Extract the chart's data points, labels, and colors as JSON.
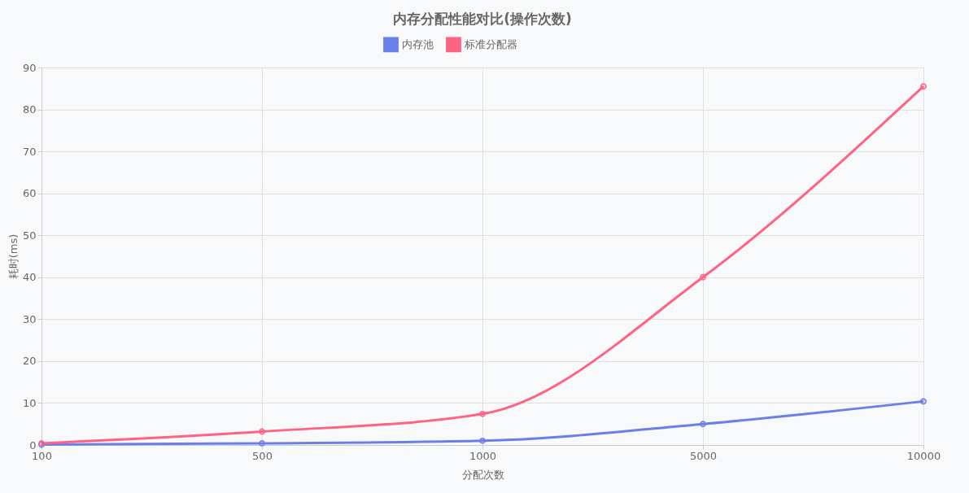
{
  "chart_data": {
    "type": "line",
    "title": "内存分配性能对比(操作次数)",
    "xlabel": "分配次数",
    "ylabel": "耗时(ms)",
    "categories": [
      "100",
      "500",
      "1000",
      "5000",
      "10000"
    ],
    "series": [
      {
        "name": "内存池",
        "color": "#6b7fe8",
        "values": [
          0.1,
          0.4,
          1.0,
          5.0,
          10.4
        ]
      },
      {
        "name": "标准分配器",
        "color": "#ff6384",
        "values": [
          0.4,
          3.2,
          7.4,
          40.0,
          85.5
        ]
      }
    ],
    "ylim": [
      0,
      90
    ],
    "yticks": [
      0,
      10,
      20,
      30,
      40,
      50,
      60,
      70,
      80,
      90
    ],
    "grid": true,
    "legend": "top",
    "marker": "circle",
    "line_style": "solid"
  }
}
